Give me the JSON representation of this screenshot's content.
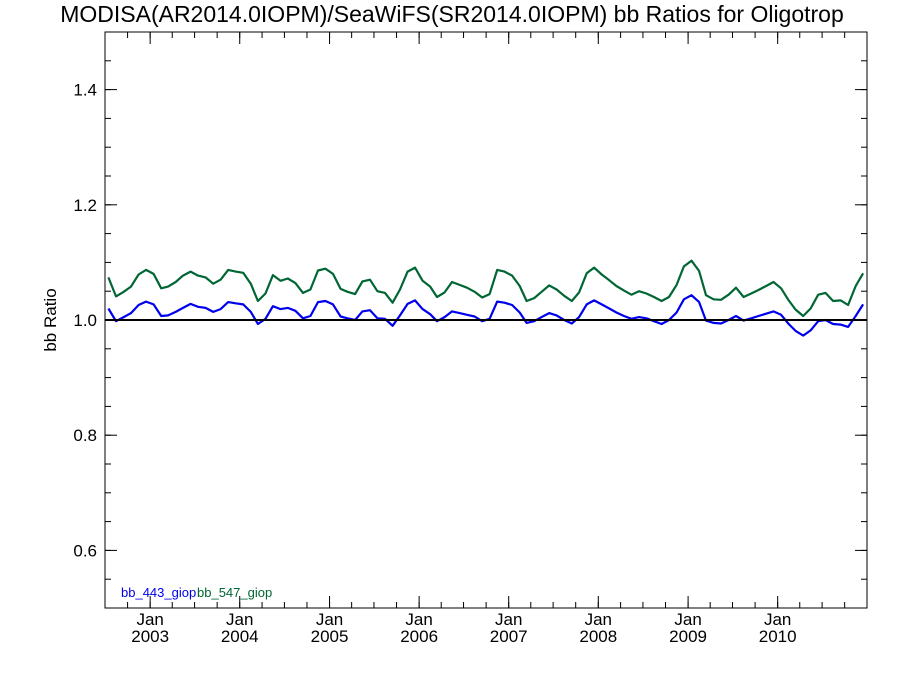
{
  "chart_data": {
    "type": "line",
    "title": "MODISA(AR2014.0IOPM)/SeaWiFS(SR2014.0IOPM)  bb Ratios for Oligotrop",
    "ylabel": "bb Ratio",
    "xlabel": "",
    "ylim": [
      0.5,
      1.5
    ],
    "xlim": [
      "2002-07-01",
      "2010-12-31"
    ],
    "yticks": [
      "0.6",
      "0.8",
      "1.0",
      "1.2",
      "1.4"
    ],
    "ytick_values": [
      0.6,
      0.8,
      1.0,
      1.2,
      1.4
    ],
    "xticks": [
      {
        "month": "Jan",
        "year": "2003",
        "date": "2003-01-01"
      },
      {
        "month": "Jan",
        "year": "2004",
        "date": "2004-01-01"
      },
      {
        "month": "Jan",
        "year": "2005",
        "date": "2005-01-01"
      },
      {
        "month": "Jan",
        "year": "2006",
        "date": "2006-01-01"
      },
      {
        "month": "Jan",
        "year": "2007",
        "date": "2007-01-01"
      },
      {
        "month": "Jan",
        "year": "2008",
        "date": "2008-01-01"
      },
      {
        "month": "Jan",
        "year": "2009",
        "date": "2009-01-01"
      },
      {
        "month": "Jan",
        "year": "2010",
        "date": "2010-01-01"
      }
    ],
    "reference_line": 1.0,
    "legend_placement": "bottom-left",
    "grid": false,
    "x": [
      "2002-07",
      "2002-08",
      "2002-09",
      "2002-10",
      "2002-11",
      "2002-12",
      "2003-01",
      "2003-02",
      "2003-03",
      "2003-04",
      "2003-05",
      "2003-06",
      "2003-07",
      "2003-08",
      "2003-09",
      "2003-10",
      "2003-11",
      "2003-12",
      "2004-01",
      "2004-02",
      "2004-03",
      "2004-04",
      "2004-05",
      "2004-06",
      "2004-07",
      "2004-08",
      "2004-09",
      "2004-10",
      "2004-11",
      "2004-12",
      "2005-01",
      "2005-02",
      "2005-03",
      "2005-04",
      "2005-05",
      "2005-06",
      "2005-07",
      "2005-08",
      "2005-09",
      "2005-10",
      "2005-11",
      "2005-12",
      "2006-01",
      "2006-02",
      "2006-03",
      "2006-04",
      "2006-05",
      "2006-06",
      "2006-07",
      "2006-08",
      "2006-09",
      "2006-10",
      "2006-11",
      "2006-12",
      "2007-01",
      "2007-02",
      "2007-03",
      "2007-04",
      "2007-05",
      "2007-06",
      "2007-07",
      "2007-08",
      "2007-09",
      "2007-10",
      "2007-11",
      "2007-12",
      "2008-01",
      "2008-02",
      "2008-03",
      "2008-04",
      "2008-05",
      "2008-06",
      "2008-07",
      "2008-08",
      "2008-09",
      "2008-10",
      "2008-11",
      "2008-12",
      "2009-01",
      "2009-02",
      "2009-03",
      "2009-04",
      "2009-05",
      "2009-06",
      "2009-07",
      "2009-08",
      "2009-09",
      "2009-10",
      "2009-11",
      "2009-12",
      "2010-01",
      "2010-02",
      "2010-03",
      "2010-04",
      "2010-05",
      "2010-06",
      "2010-07",
      "2010-08",
      "2010-09",
      "2010-10",
      "2010-11",
      "2010-12"
    ],
    "series": [
      {
        "name": "bb_443_giop",
        "color": "#0000ee",
        "values": [
          1.02,
          0.998,
          1.005,
          1.012,
          1.026,
          1.032,
          1.027,
          1.007,
          1.008,
          1.014,
          1.021,
          1.028,
          1.023,
          1.021,
          1.014,
          1.019,
          1.031,
          1.029,
          1.027,
          1.014,
          0.993,
          1.002,
          1.024,
          1.019,
          1.021,
          1.016,
          1.003,
          1.007,
          1.031,
          1.033,
          1.027,
          1.006,
          1.003,
          1.0,
          1.015,
          1.017,
          1.003,
          1.002,
          0.99,
          1.008,
          1.028,
          1.034,
          1.019,
          1.01,
          0.998,
          1.005,
          1.015,
          1.012,
          1.009,
          1.006,
          0.998,
          1.002,
          1.032,
          1.03,
          1.026,
          1.013,
          0.995,
          0.998,
          1.005,
          1.012,
          1.008,
          1.0,
          0.994,
          1.005,
          1.027,
          1.034,
          1.027,
          1.02,
          1.013,
          1.007,
          1.002,
          1.005,
          1.003,
          0.998,
          0.993,
          1.0,
          1.013,
          1.036,
          1.043,
          1.031,
          0.999,
          0.995,
          0.994,
          1.0,
          1.007,
          0.999,
          1.003,
          1.007,
          1.011,
          1.015,
          1.009,
          0.993,
          0.981,
          0.973,
          0.982,
          0.998,
          1.0,
          0.993,
          0.992,
          0.988,
          1.007,
          1.027
        ]
      },
      {
        "name": "bb_547_giop",
        "color": "#006633",
        "values": [
          1.074,
          1.041,
          1.049,
          1.058,
          1.079,
          1.087,
          1.08,
          1.055,
          1.058,
          1.066,
          1.077,
          1.084,
          1.077,
          1.074,
          1.063,
          1.07,
          1.087,
          1.084,
          1.082,
          1.063,
          1.033,
          1.046,
          1.078,
          1.068,
          1.072,
          1.064,
          1.047,
          1.053,
          1.086,
          1.089,
          1.08,
          1.054,
          1.049,
          1.045,
          1.067,
          1.07,
          1.05,
          1.047,
          1.03,
          1.053,
          1.084,
          1.091,
          1.068,
          1.058,
          1.04,
          1.048,
          1.066,
          1.061,
          1.056,
          1.049,
          1.039,
          1.045,
          1.087,
          1.084,
          1.077,
          1.059,
          1.033,
          1.038,
          1.049,
          1.06,
          1.053,
          1.042,
          1.033,
          1.048,
          1.081,
          1.091,
          1.079,
          1.069,
          1.059,
          1.051,
          1.044,
          1.05,
          1.046,
          1.04,
          1.033,
          1.04,
          1.061,
          1.093,
          1.103,
          1.085,
          1.043,
          1.036,
          1.035,
          1.044,
          1.056,
          1.04,
          1.046,
          1.052,
          1.059,
          1.066,
          1.055,
          1.034,
          1.018,
          1.007,
          1.02,
          1.044,
          1.047,
          1.033,
          1.034,
          1.026,
          1.059,
          1.081
        ]
      }
    ]
  }
}
